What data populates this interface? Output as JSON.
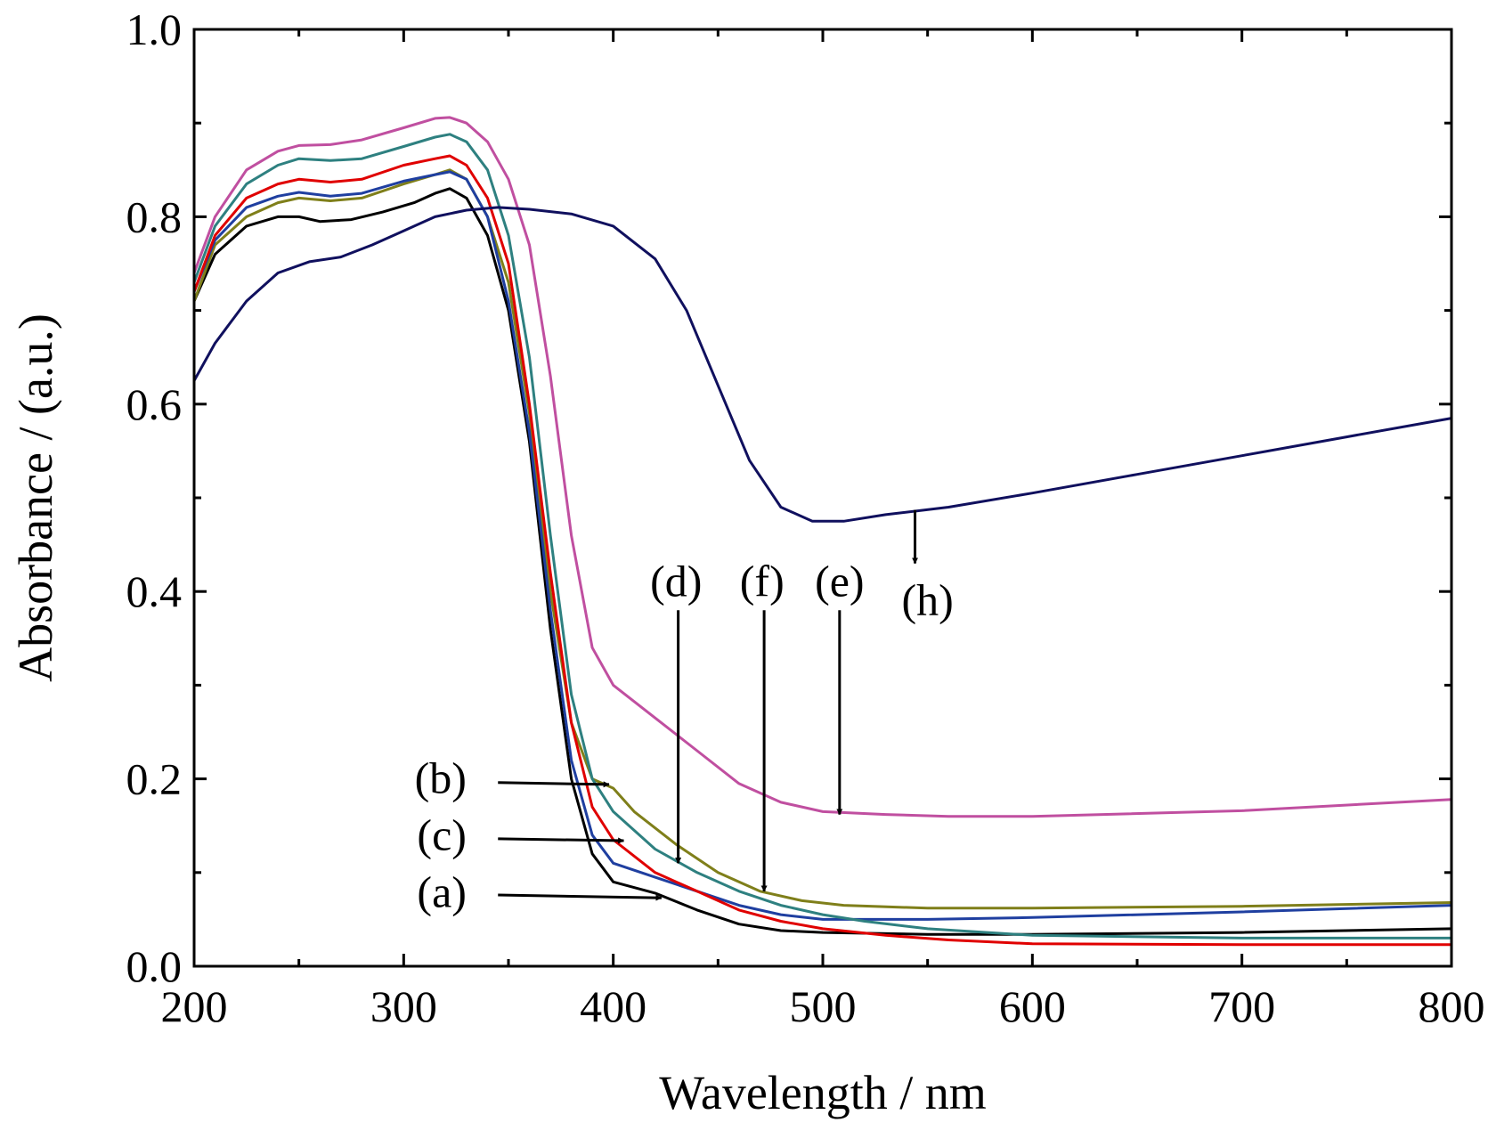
{
  "chart_data": {
    "type": "line",
    "xlabel": "Wavelength / nm",
    "ylabel": "Absorbance / (a.u.)",
    "xlim": [
      200,
      800
    ],
    "ylim": [
      0.0,
      1.0
    ],
    "x_ticks": [
      "200",
      "300",
      "400",
      "500",
      "600",
      "700",
      "800"
    ],
    "x_tick_values": [
      200,
      300,
      400,
      500,
      600,
      700,
      800
    ],
    "y_ticks": [
      "0.0",
      "0.2",
      "0.4",
      "0.6",
      "0.8",
      "1.0"
    ],
    "y_tick_values": [
      0.0,
      0.2,
      0.4,
      0.6,
      0.8,
      1.0
    ],
    "grid": false,
    "legend": "none",
    "series": [
      {
        "color": "#000000",
        "points": [
          [
            200,
            0.71
          ],
          [
            210,
            0.76
          ],
          [
            225,
            0.79
          ],
          [
            240,
            0.8
          ],
          [
            250,
            0.8
          ],
          [
            260,
            0.795
          ],
          [
            275,
            0.797
          ],
          [
            290,
            0.805
          ],
          [
            305,
            0.815
          ],
          [
            315,
            0.825
          ],
          [
            322,
            0.83
          ],
          [
            330,
            0.82
          ],
          [
            340,
            0.78
          ],
          [
            350,
            0.7
          ],
          [
            360,
            0.56
          ],
          [
            370,
            0.36
          ],
          [
            380,
            0.2
          ],
          [
            390,
            0.12
          ],
          [
            400,
            0.09
          ],
          [
            420,
            0.078
          ],
          [
            440,
            0.06
          ],
          [
            460,
            0.045
          ],
          [
            480,
            0.038
          ],
          [
            500,
            0.036
          ],
          [
            550,
            0.034
          ],
          [
            600,
            0.034
          ],
          [
            700,
            0.036
          ],
          [
            800,
            0.04
          ]
        ]
      },
      {
        "color": "#7f7f1a",
        "points": [
          [
            200,
            0.71
          ],
          [
            210,
            0.77
          ],
          [
            225,
            0.8
          ],
          [
            240,
            0.815
          ],
          [
            250,
            0.82
          ],
          [
            265,
            0.817
          ],
          [
            280,
            0.82
          ],
          [
            300,
            0.835
          ],
          [
            315,
            0.845
          ],
          [
            322,
            0.85
          ],
          [
            330,
            0.84
          ],
          [
            340,
            0.8
          ],
          [
            350,
            0.73
          ],
          [
            360,
            0.59
          ],
          [
            370,
            0.4
          ],
          [
            380,
            0.26
          ],
          [
            390,
            0.2
          ],
          [
            400,
            0.19
          ],
          [
            410,
            0.165
          ],
          [
            430,
            0.13
          ],
          [
            450,
            0.1
          ],
          [
            470,
            0.08
          ],
          [
            490,
            0.07
          ],
          [
            510,
            0.065
          ],
          [
            550,
            0.062
          ],
          [
            600,
            0.062
          ],
          [
            700,
            0.064
          ],
          [
            800,
            0.068
          ]
        ]
      },
      {
        "color": "#1f3fa0",
        "points": [
          [
            200,
            0.72
          ],
          [
            210,
            0.775
          ],
          [
            225,
            0.81
          ],
          [
            240,
            0.822
          ],
          [
            250,
            0.826
          ],
          [
            265,
            0.822
          ],
          [
            280,
            0.825
          ],
          [
            300,
            0.838
          ],
          [
            315,
            0.845
          ],
          [
            322,
            0.848
          ],
          [
            330,
            0.84
          ],
          [
            340,
            0.8
          ],
          [
            350,
            0.71
          ],
          [
            360,
            0.57
          ],
          [
            370,
            0.38
          ],
          [
            380,
            0.22
          ],
          [
            390,
            0.14
          ],
          [
            400,
            0.11
          ],
          [
            420,
            0.095
          ],
          [
            440,
            0.08
          ],
          [
            460,
            0.065
          ],
          [
            480,
            0.055
          ],
          [
            500,
            0.05
          ],
          [
            550,
            0.05
          ],
          [
            600,
            0.052
          ],
          [
            700,
            0.058
          ],
          [
            800,
            0.065
          ]
        ]
      },
      {
        "color": "#e00000",
        "points": [
          [
            200,
            0.72
          ],
          [
            210,
            0.78
          ],
          [
            225,
            0.82
          ],
          [
            240,
            0.835
          ],
          [
            250,
            0.84
          ],
          [
            265,
            0.837
          ],
          [
            280,
            0.84
          ],
          [
            300,
            0.855
          ],
          [
            315,
            0.862
          ],
          [
            322,
            0.865
          ],
          [
            330,
            0.855
          ],
          [
            340,
            0.82
          ],
          [
            350,
            0.75
          ],
          [
            360,
            0.6
          ],
          [
            370,
            0.42
          ],
          [
            380,
            0.26
          ],
          [
            390,
            0.17
          ],
          [
            400,
            0.135
          ],
          [
            420,
            0.1
          ],
          [
            440,
            0.08
          ],
          [
            460,
            0.06
          ],
          [
            480,
            0.048
          ],
          [
            500,
            0.04
          ],
          [
            530,
            0.033
          ],
          [
            560,
            0.028
          ],
          [
            600,
            0.024
          ],
          [
            700,
            0.023
          ],
          [
            800,
            0.023
          ]
        ]
      },
      {
        "color": "#2e8080",
        "points": [
          [
            200,
            0.73
          ],
          [
            210,
            0.79
          ],
          [
            225,
            0.835
          ],
          [
            240,
            0.855
          ],
          [
            250,
            0.862
          ],
          [
            265,
            0.86
          ],
          [
            280,
            0.862
          ],
          [
            300,
            0.875
          ],
          [
            315,
            0.885
          ],
          [
            322,
            0.888
          ],
          [
            330,
            0.88
          ],
          [
            340,
            0.85
          ],
          [
            350,
            0.78
          ],
          [
            360,
            0.65
          ],
          [
            370,
            0.46
          ],
          [
            380,
            0.29
          ],
          [
            390,
            0.2
          ],
          [
            400,
            0.165
          ],
          [
            420,
            0.125
          ],
          [
            440,
            0.1
          ],
          [
            460,
            0.08
          ],
          [
            480,
            0.065
          ],
          [
            500,
            0.055
          ],
          [
            520,
            0.048
          ],
          [
            550,
            0.04
          ],
          [
            600,
            0.033
          ],
          [
            700,
            0.03
          ],
          [
            800,
            0.03
          ]
        ]
      },
      {
        "color": "#c04fa0",
        "points": [
          [
            200,
            0.74
          ],
          [
            210,
            0.8
          ],
          [
            225,
            0.85
          ],
          [
            240,
            0.87
          ],
          [
            250,
            0.876
          ],
          [
            265,
            0.877
          ],
          [
            280,
            0.882
          ],
          [
            300,
            0.895
          ],
          [
            315,
            0.905
          ],
          [
            322,
            0.906
          ],
          [
            330,
            0.9
          ],
          [
            340,
            0.88
          ],
          [
            350,
            0.84
          ],
          [
            360,
            0.77
          ],
          [
            370,
            0.63
          ],
          [
            380,
            0.46
          ],
          [
            390,
            0.34
          ],
          [
            400,
            0.3
          ],
          [
            420,
            0.265
          ],
          [
            440,
            0.23
          ],
          [
            460,
            0.195
          ],
          [
            480,
            0.175
          ],
          [
            500,
            0.165
          ],
          [
            530,
            0.162
          ],
          [
            560,
            0.16
          ],
          [
            600,
            0.16
          ],
          [
            700,
            0.166
          ],
          [
            800,
            0.178
          ]
        ]
      },
      {
        "color": "#10105e",
        "points": [
          [
            200,
            0.625
          ],
          [
            210,
            0.665
          ],
          [
            225,
            0.71
          ],
          [
            240,
            0.74
          ],
          [
            255,
            0.752
          ],
          [
            270,
            0.757
          ],
          [
            285,
            0.77
          ],
          [
            300,
            0.785
          ],
          [
            315,
            0.8
          ],
          [
            330,
            0.807
          ],
          [
            345,
            0.81
          ],
          [
            360,
            0.808
          ],
          [
            380,
            0.803
          ],
          [
            400,
            0.79
          ],
          [
            420,
            0.755
          ],
          [
            435,
            0.7
          ],
          [
            450,
            0.62
          ],
          [
            465,
            0.54
          ],
          [
            480,
            0.49
          ],
          [
            495,
            0.475
          ],
          [
            510,
            0.475
          ],
          [
            530,
            0.482
          ],
          [
            560,
            0.49
          ],
          [
            600,
            0.505
          ],
          [
            650,
            0.525
          ],
          [
            700,
            0.545
          ],
          [
            750,
            0.565
          ],
          [
            800,
            0.585
          ]
        ]
      }
    ],
    "annotations": [
      {
        "label": "(a)",
        "text_pos": [
          330,
          0.063
        ],
        "arrow_from": [
          345,
          0.076
        ],
        "arrow_to": [
          423,
          0.073
        ]
      },
      {
        "label": "(b)",
        "text_pos": [
          330,
          0.185
        ],
        "arrow_from": [
          345,
          0.196
        ],
        "arrow_to": [
          398,
          0.194
        ]
      },
      {
        "label": "(c)",
        "text_pos": [
          330,
          0.124
        ],
        "arrow_from": [
          345,
          0.136
        ],
        "arrow_to": [
          405,
          0.134
        ]
      },
      {
        "label": "(d)",
        "text_pos": [
          430,
          0.395
        ],
        "arrow_from": [
          431,
          0.38
        ],
        "arrow_to": [
          431,
          0.11
        ]
      },
      {
        "label": "(f)",
        "text_pos": [
          471,
          0.395
        ],
        "arrow_from": [
          472,
          0.38
        ],
        "arrow_to": [
          472,
          0.08
        ]
      },
      {
        "label": "(e)",
        "text_pos": [
          508,
          0.395
        ],
        "arrow_from": [
          508,
          0.38
        ],
        "arrow_to": [
          508,
          0.162
        ]
      },
      {
        "label": "(h)",
        "text_pos": [
          550,
          0.375
        ],
        "arrow_from": [
          544,
          0.487
        ],
        "arrow_to": [
          544,
          0.43
        ]
      }
    ]
  }
}
